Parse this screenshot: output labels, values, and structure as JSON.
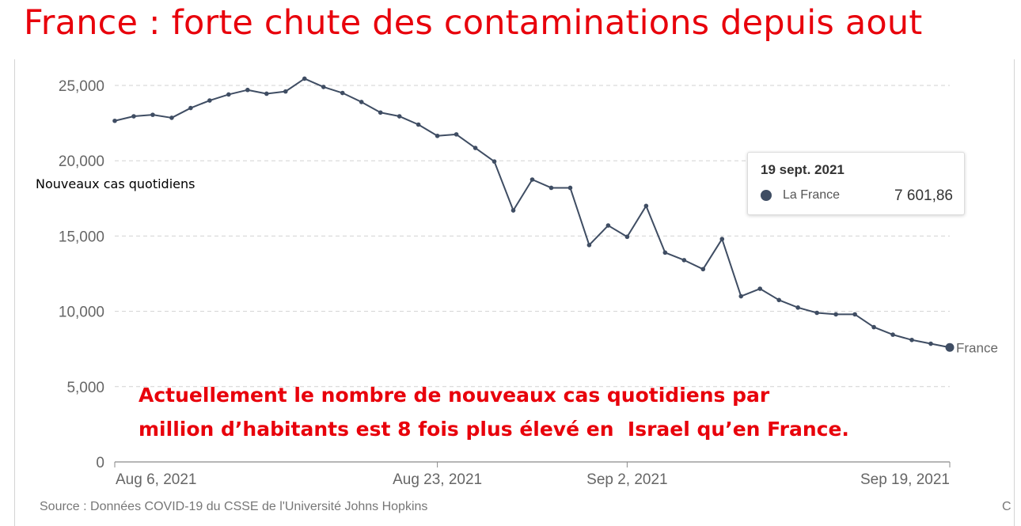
{
  "title": "France : forte chute des contaminations depuis aout",
  "chart_data": {
    "type": "line",
    "title": "",
    "ylabel": "Nouveaux cas quotidiens",
    "xlabel": "",
    "ylim": [
      0,
      26000
    ],
    "y_ticks": [
      0,
      5000,
      10000,
      15000,
      20000,
      25000
    ],
    "y_tick_labels": [
      "0",
      "5,000",
      "10,000",
      "15,000",
      "20,000",
      "25,000"
    ],
    "x_tick_labels": [
      "Aug 6, 2021",
      "Aug 23, 2021",
      "Sep 2, 2021",
      "Sep 19, 2021"
    ],
    "x_tick_dates": [
      "2021-08-06",
      "2021-08-23",
      "2021-09-02",
      "2021-09-19"
    ],
    "grid": true,
    "series": [
      {
        "name": "France",
        "color": "#3f4d63",
        "x": [
          "2021-08-06",
          "2021-08-07",
          "2021-08-08",
          "2021-08-09",
          "2021-08-10",
          "2021-08-11",
          "2021-08-12",
          "2021-08-13",
          "2021-08-14",
          "2021-08-15",
          "2021-08-16",
          "2021-08-17",
          "2021-08-18",
          "2021-08-19",
          "2021-08-20",
          "2021-08-21",
          "2021-08-22",
          "2021-08-23",
          "2021-08-24",
          "2021-08-25",
          "2021-08-26",
          "2021-08-27",
          "2021-08-28",
          "2021-08-29",
          "2021-08-30",
          "2021-08-31",
          "2021-09-01",
          "2021-09-02",
          "2021-09-03",
          "2021-09-04",
          "2021-09-05",
          "2021-09-06",
          "2021-09-07",
          "2021-09-08",
          "2021-09-09",
          "2021-09-10",
          "2021-09-11",
          "2021-09-12",
          "2021-09-13",
          "2021-09-14",
          "2021-09-15",
          "2021-09-16",
          "2021-09-17",
          "2021-09-18",
          "2021-09-19"
        ],
        "y": [
          22650,
          22950,
          23050,
          22850,
          23500,
          24000,
          24400,
          24700,
          24450,
          24600,
          25450,
          24900,
          24500,
          23900,
          23200,
          22950,
          22400,
          21650,
          21750,
          20850,
          19950,
          16700,
          18750,
          18200,
          18200,
          14400,
          15700,
          14950,
          17000,
          13900,
          13400,
          12800,
          14800,
          11000,
          11500,
          10750,
          10250,
          9900,
          9800,
          9800,
          8950,
          8450,
          8100,
          7850,
          7601.86
        ],
        "end_label": "France"
      }
    ],
    "tooltip": {
      "date": "19 sept. 2021",
      "series": "La France",
      "value": "7 601,86"
    },
    "annotation": "Actuellement le nombre de nouveaux cas quotidiens par\nmillion d’habitants est 8 fois plus élevé en  Israel qu’en France."
  },
  "source": "Source : Données COVID-19 du CSSE de l'Université Johns Hopkins",
  "corner": "C"
}
